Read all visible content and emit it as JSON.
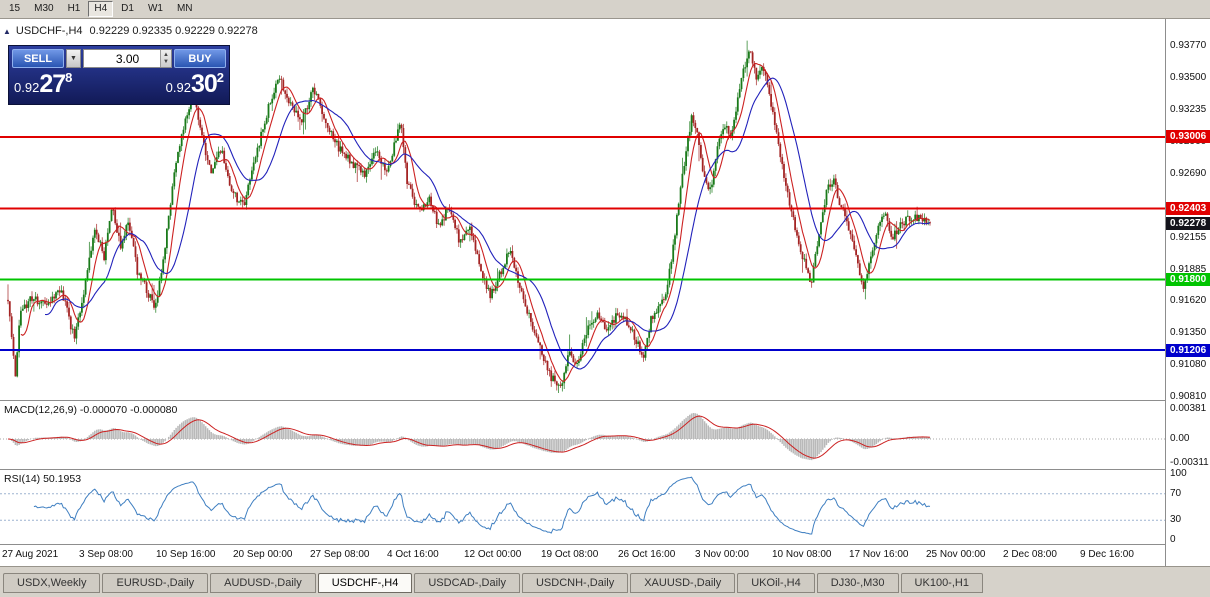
{
  "toolbar": {
    "timeframes": [
      {
        "label": "15",
        "active": false
      },
      {
        "label": "M30",
        "active": false
      },
      {
        "label": "H1",
        "active": false
      },
      {
        "label": "H4",
        "active": true
      },
      {
        "label": "D1",
        "active": false
      },
      {
        "label": "W1",
        "active": false
      },
      {
        "label": "MN",
        "active": false
      }
    ]
  },
  "chart_header": {
    "collapse_icon": "▲",
    "symbol": "USDCHF-,H4",
    "ohlc": "0.92229 0.92335 0.92229 0.92278"
  },
  "trade_panel": {
    "sell_label": "SELL",
    "buy_label": "BUY",
    "volume": "3.00",
    "dropdown_icon": "▼",
    "spin_up_icon": "▲",
    "spin_down_icon": "▼",
    "sell_price": {
      "main": "0.92",
      "big": "27",
      "sup": "8"
    },
    "buy_price": {
      "main": "0.92",
      "big": "30",
      "sup": "2"
    }
  },
  "price_axis": {
    "ticks": [
      "0.93770",
      "0.93500",
      "0.93235",
      "0.92960",
      "0.92690",
      "0.92415",
      "0.92155",
      "0.91885",
      "0.91620",
      "0.91350",
      "0.91080",
      "0.90810"
    ]
  },
  "macd_panel": {
    "label": "MACD(12,26,9) -0.000070 -0.000080",
    "axis_labels": [
      "0.00381",
      "0.00",
      "-0.00311"
    ],
    "params": {
      "fast": 12,
      "slow": 26,
      "signal": 9
    },
    "histogram_color": "#b9b9b9",
    "signal_color": "#cc2222"
  },
  "rsi_panel": {
    "label": "RSI(14) 50.1953",
    "axis_labels": [
      "100",
      "70",
      "30",
      "0"
    ],
    "levels": [
      70,
      30
    ],
    "period": 14,
    "line_color": "#3f7fc1"
  },
  "time_axis": {
    "labels": [
      "27 Aug 2021",
      "3 Sep 08:00",
      "10 Sep 16:00",
      "20 Sep 00:00",
      "27 Sep 08:00",
      "4 Oct 16:00",
      "12 Oct 00:00",
      "19 Oct 08:00",
      "26 Oct 16:00",
      "3 Nov 00:00",
      "10 Nov 08:00",
      "17 Nov 16:00",
      "25 Nov 00:00",
      "2 Dec 08:00",
      "9 Dec 16:00"
    ]
  },
  "tab_bar": {
    "tabs": [
      {
        "label": "USDX,Weekly",
        "active": false
      },
      {
        "label": "EURUSD-,Daily",
        "active": false
      },
      {
        "label": "AUDUSD-,Daily",
        "active": false
      },
      {
        "label": "USDCHF-,H4",
        "active": true
      },
      {
        "label": "USDCAD-,Daily",
        "active": false
      },
      {
        "label": "USDCNH-,Daily",
        "active": false
      },
      {
        "label": "XAUUSD-,Daily",
        "active": false
      },
      {
        "label": "UKOil-,H4",
        "active": false
      },
      {
        "label": "DJ30-,M30",
        "active": false
      },
      {
        "label": "UK100-,H1",
        "active": false
      }
    ]
  },
  "chart_data": {
    "type": "candlestick",
    "symbol": "USDCHF",
    "timeframe": "H4",
    "last_price": 0.92278,
    "price_range": {
      "max": 0.94,
      "min": 0.90785
    },
    "num_candles": 500,
    "up_color": "#1a7a1a",
    "down_color": "#a42424",
    "ma_fast": {
      "period": 8,
      "color": "#cc2222"
    },
    "ma_slow": {
      "period": 21,
      "color": "#2222bb"
    },
    "horizontal_lines": [
      {
        "price": 0.93006,
        "label": "0.93006",
        "color": "#e00000"
      },
      {
        "price": 0.92403,
        "label": "0.92403",
        "color": "#e00000"
      },
      {
        "price": 0.918,
        "label": "0.91800",
        "color": "#00c400"
      },
      {
        "price": 0.91206,
        "label": "0.91206",
        "color": "#0000cc"
      }
    ],
    "current_price": {
      "value": 0.92278,
      "label": "0.92278",
      "bg": "#14141c"
    },
    "waypoints": [
      [
        0.0,
        0.9163
      ],
      [
        0.004,
        0.9132
      ],
      [
        0.008,
        0.9096
      ],
      [
        0.013,
        0.915
      ],
      [
        0.025,
        0.9166
      ],
      [
        0.042,
        0.9158
      ],
      [
        0.058,
        0.9171
      ],
      [
        0.072,
        0.913
      ],
      [
        0.082,
        0.9166
      ],
      [
        0.094,
        0.9226
      ],
      [
        0.104,
        0.9198
      ],
      [
        0.113,
        0.9244
      ],
      [
        0.122,
        0.9208
      ],
      [
        0.131,
        0.923
      ],
      [
        0.14,
        0.9188
      ],
      [
        0.151,
        0.917
      ],
      [
        0.16,
        0.9156
      ],
      [
        0.171,
        0.9212
      ],
      [
        0.181,
        0.9272
      ],
      [
        0.191,
        0.931
      ],
      [
        0.201,
        0.9338
      ],
      [
        0.211,
        0.9296
      ],
      [
        0.221,
        0.927
      ],
      [
        0.231,
        0.929
      ],
      [
        0.243,
        0.9254
      ],
      [
        0.255,
        0.9242
      ],
      [
        0.267,
        0.9278
      ],
      [
        0.279,
        0.9316
      ],
      [
        0.293,
        0.9352
      ],
      [
        0.306,
        0.933
      ],
      [
        0.318,
        0.9312
      ],
      [
        0.331,
        0.934
      ],
      [
        0.344,
        0.9316
      ],
      [
        0.358,
        0.9292
      ],
      [
        0.372,
        0.928
      ],
      [
        0.386,
        0.9268
      ],
      [
        0.398,
        0.9288
      ],
      [
        0.412,
        0.9272
      ],
      [
        0.42,
        0.9296
      ],
      [
        0.426,
        0.9316
      ],
      [
        0.433,
        0.9262
      ],
      [
        0.445,
        0.9238
      ],
      [
        0.457,
        0.9248
      ],
      [
        0.468,
        0.9222
      ],
      [
        0.478,
        0.9242
      ],
      [
        0.49,
        0.9212
      ],
      [
        0.501,
        0.9224
      ],
      [
        0.512,
        0.919
      ],
      [
        0.523,
        0.9166
      ],
      [
        0.534,
        0.9186
      ],
      [
        0.544,
        0.9204
      ],
      [
        0.554,
        0.9178
      ],
      [
        0.565,
        0.915
      ],
      [
        0.577,
        0.9122
      ],
      [
        0.589,
        0.9098
      ],
      [
        0.599,
        0.9088
      ],
      [
        0.609,
        0.912
      ],
      [
        0.617,
        0.9108
      ],
      [
        0.627,
        0.9136
      ],
      [
        0.639,
        0.915
      ],
      [
        0.651,
        0.9138
      ],
      [
        0.661,
        0.9152
      ],
      [
        0.671,
        0.9144
      ],
      [
        0.681,
        0.913
      ],
      [
        0.689,
        0.9112
      ],
      [
        0.697,
        0.9146
      ],
      [
        0.706,
        0.9158
      ],
      [
        0.714,
        0.917
      ],
      [
        0.721,
        0.9205
      ],
      [
        0.728,
        0.9248
      ],
      [
        0.735,
        0.9288
      ],
      [
        0.742,
        0.9318
      ],
      [
        0.749,
        0.9298
      ],
      [
        0.756,
        0.9262
      ],
      [
        0.763,
        0.9258
      ],
      [
        0.77,
        0.9296
      ],
      [
        0.777,
        0.9312
      ],
      [
        0.784,
        0.93
      ],
      [
        0.791,
        0.933
      ],
      [
        0.798,
        0.9358
      ],
      [
        0.805,
        0.9374
      ],
      [
        0.812,
        0.9348
      ],
      [
        0.819,
        0.936
      ],
      [
        0.826,
        0.9334
      ],
      [
        0.834,
        0.93
      ],
      [
        0.844,
        0.9256
      ],
      [
        0.854,
        0.9224
      ],
      [
        0.863,
        0.9196
      ],
      [
        0.871,
        0.9176
      ],
      [
        0.879,
        0.9214
      ],
      [
        0.887,
        0.9252
      ],
      [
        0.895,
        0.9266
      ],
      [
        0.903,
        0.9242
      ],
      [
        0.911,
        0.9226
      ],
      [
        0.919,
        0.9204
      ],
      [
        0.927,
        0.9172
      ],
      [
        0.935,
        0.9198
      ],
      [
        0.943,
        0.9224
      ],
      [
        0.951,
        0.9238
      ],
      [
        0.959,
        0.9216
      ],
      [
        0.969,
        0.9228
      ],
      [
        0.983,
        0.9234
      ],
      [
        1.0,
        0.92278
      ]
    ]
  }
}
